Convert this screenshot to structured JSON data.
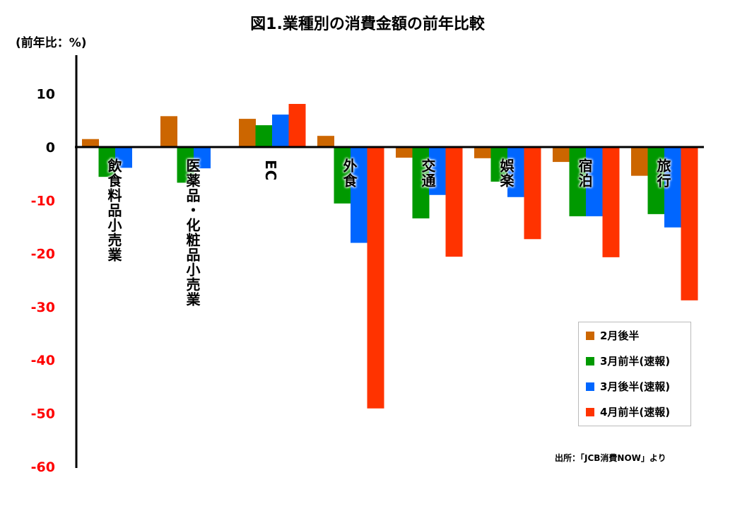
{
  "chart_data": {
    "type": "bar",
    "title": "図1.業種別の消費金額の前年比較",
    "ylabel": "(前年比：%)",
    "xlabel": "",
    "ylim": [
      -60,
      17
    ],
    "yticks": [
      "10",
      "0",
      "-10",
      "-20",
      "-30",
      "-40",
      "-50",
      "-60"
    ],
    "ytick_values": [
      10,
      0,
      -10,
      -20,
      -30,
      -40,
      -50,
      -60
    ],
    "categories": [
      "飲食料品小売業",
      "医薬品・化粧品小売業",
      "EC",
      "外食",
      "交通",
      "娯楽",
      "宿泊",
      "旅行"
    ],
    "series": [
      {
        "name": "2月後半",
        "color": "#CC6600",
        "values": [
          1.5,
          5.8,
          5.3,
          2.1,
          -2.0,
          -2.1,
          -2.8,
          -5.4
        ]
      },
      {
        "name": "3月前半(速報)",
        "color": "#009900",
        "values": [
          -5.6,
          -6.7,
          4.1,
          -10.6,
          -13.4,
          -6.5,
          -13.0,
          -12.6
        ]
      },
      {
        "name": "3月後半(速報)",
        "color": "#0066FF",
        "values": [
          -3.9,
          -4.0,
          6.1,
          -18.0,
          -9.0,
          -9.4,
          -13.0,
          -15.1
        ]
      },
      {
        "name": "4月前半(速報)",
        "color": "#FF3300",
        "values": [
          null,
          null,
          8.1,
          -49.1,
          -20.6,
          -17.3,
          -20.7,
          -28.8
        ]
      }
    ],
    "legend_position": "bottom-right",
    "grid": false,
    "source_note": "出所：「JCB消費NOW」より"
  }
}
